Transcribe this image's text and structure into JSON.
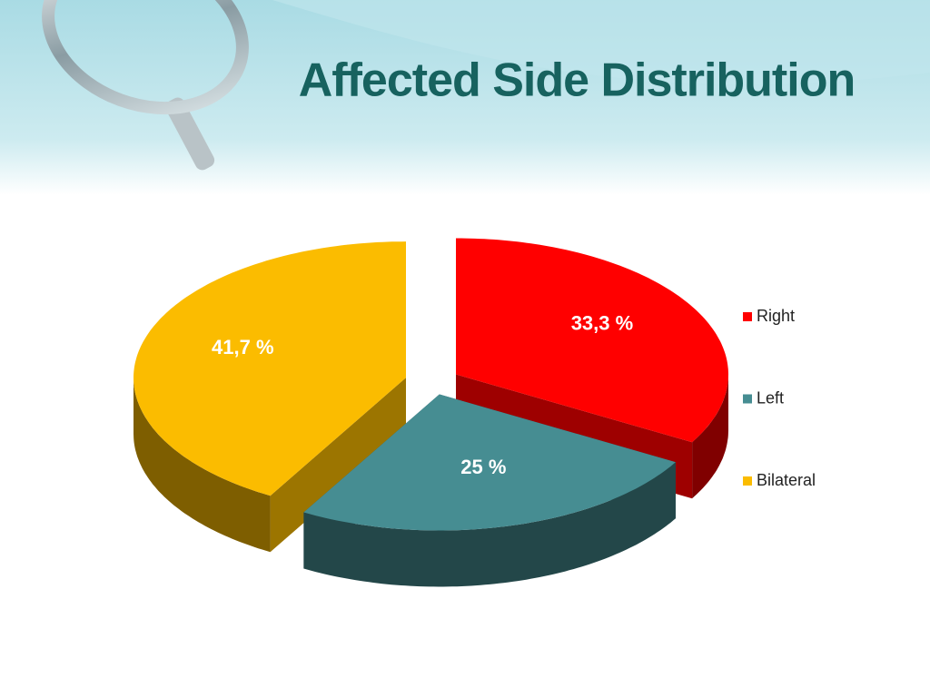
{
  "chart_data": {
    "type": "pie",
    "title": "Affected Side Distribution",
    "categories": [
      "Right",
      "Left",
      "Bilateral"
    ],
    "values": [
      33.3,
      25,
      41.7
    ],
    "value_labels": [
      "33,3 %",
      "25 %",
      "41,7 %"
    ],
    "colors": [
      "#ff0000",
      "#468d92",
      "#fbbc00"
    ],
    "legend": "right"
  }
}
